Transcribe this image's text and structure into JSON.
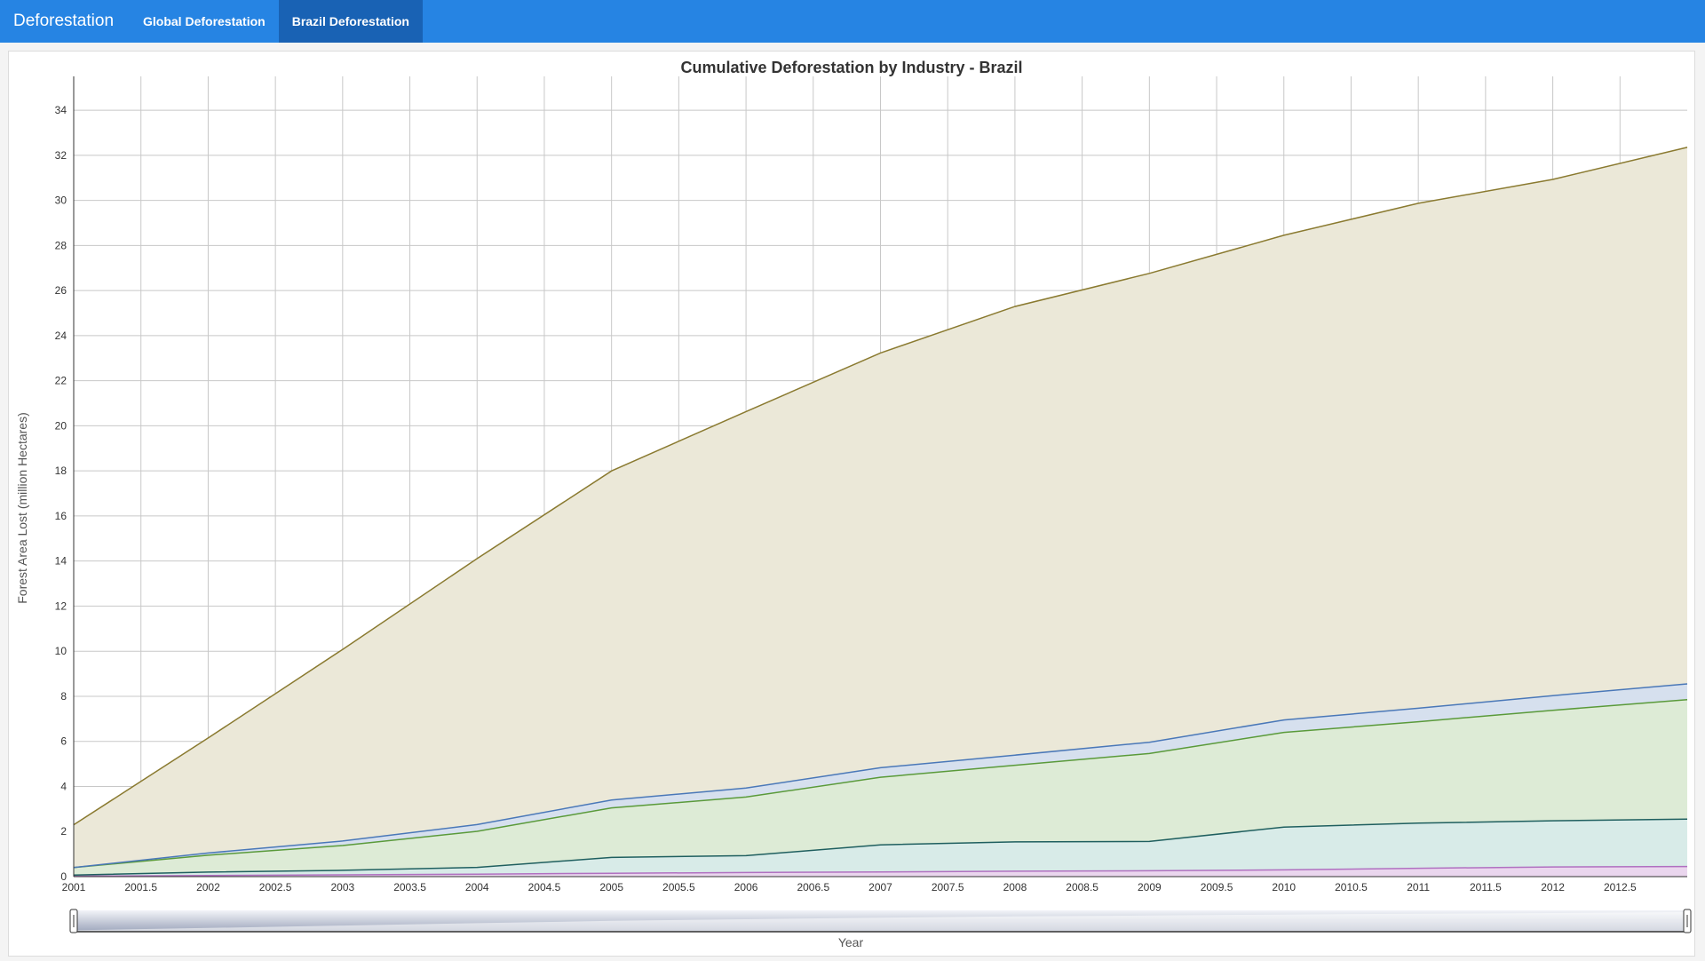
{
  "navbar": {
    "brand": "Deforestation",
    "tabs": [
      {
        "label": "Global Deforestation",
        "active": false
      },
      {
        "label": "Brazil Deforestation",
        "active": true
      }
    ],
    "colors": {
      "bar": "#2684e3",
      "active_tab": "#1962b4"
    }
  },
  "chart_data": {
    "type": "area",
    "stacked": true,
    "title": "Cumulative Deforestation by Industry - Brazil",
    "xlabel": "Year",
    "ylabel": "Forest Area Lost (million Hectares)",
    "xlim": [
      2001,
      2013
    ],
    "ylim": [
      0,
      35.5
    ],
    "grid": true,
    "range_selector": true,
    "x": [
      2001,
      2002,
      2003,
      2004,
      2005,
      2006,
      2007,
      2008,
      2009,
      2010,
      2011,
      2012,
      2013
    ],
    "x_ticks": [
      "2001",
      "2001.5",
      "2002",
      "2002.5",
      "2003",
      "2003.5",
      "2004",
      "2004.5",
      "2005",
      "2005.5",
      "2006",
      "2006.5",
      "2007",
      "2007.5",
      "2008",
      "2008.5",
      "2009",
      "2009.5",
      "2010",
      "2010.5",
      "2011",
      "2011.5",
      "2012",
      "2012.5"
    ],
    "y_ticks": [
      "0",
      "2",
      "4",
      "6",
      "8",
      "10",
      "12",
      "14",
      "16",
      "18",
      "20",
      "22",
      "24",
      "26",
      "28",
      "30",
      "32",
      "34"
    ],
    "series": [
      {
        "color": "#b070c0",
        "fill": "#ead6ee",
        "values": [
          0.02,
          0.05,
          0.08,
          0.11,
          0.15,
          0.18,
          0.21,
          0.24,
          0.26,
          0.3,
          0.37,
          0.43,
          0.45
        ]
      },
      {
        "color": "#1f5f5f",
        "fill": "#d8ebe8",
        "values": [
          0.05,
          0.15,
          0.2,
          0.3,
          0.7,
          0.75,
          1.2,
          1.3,
          1.3,
          1.9,
          2.0,
          2.05,
          2.1
        ]
      },
      {
        "color": "#5a9a3a",
        "fill": "#ddebd6",
        "values": [
          0.33,
          0.75,
          1.1,
          1.6,
          2.2,
          2.6,
          3.0,
          3.4,
          3.9,
          4.2,
          4.5,
          4.9,
          5.3
        ]
      },
      {
        "color": "#4a78b8",
        "fill": "#d6e0ee",
        "values": [
          0.0,
          0.1,
          0.2,
          0.3,
          0.35,
          0.4,
          0.42,
          0.45,
          0.5,
          0.55,
          0.6,
          0.65,
          0.7
        ]
      },
      {
        "color": "#8a7a30",
        "fill": "#ebe8d8",
        "values": [
          1.9,
          5.1,
          8.5,
          11.8,
          14.6,
          16.7,
          18.4,
          19.9,
          20.8,
          21.5,
          22.4,
          22.9,
          23.8
        ]
      }
    ]
  }
}
